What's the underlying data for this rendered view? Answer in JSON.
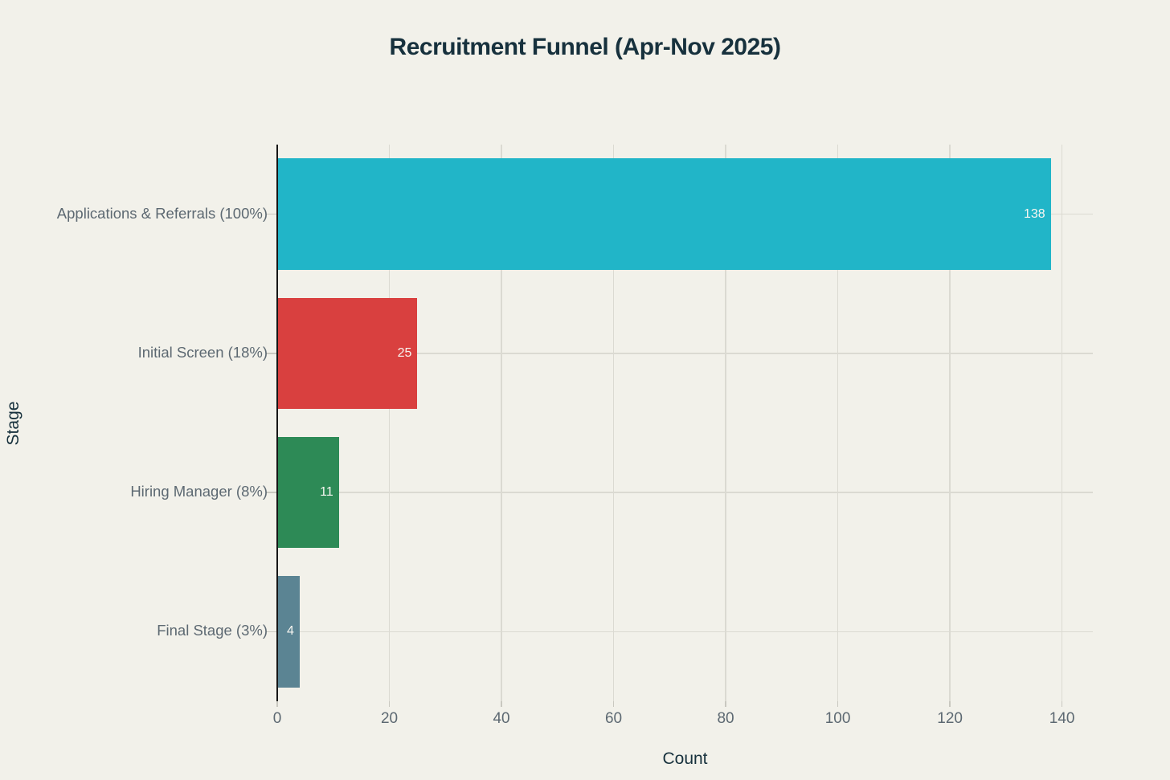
{
  "title": "Recruitment Funnel (Apr-Nov 2025)",
  "chart_data": {
    "type": "bar",
    "orientation": "horizontal",
    "title": "Recruitment Funnel (Apr-Nov 2025)",
    "xlabel": "Count",
    "ylabel": "Stage",
    "categories": [
      "Applications & Referrals (100%)",
      "Initial Screen (18%)",
      "Hiring Manager (8%)",
      "Final Stage (3%)"
    ],
    "values": [
      138,
      25,
      11,
      4
    ],
    "value_labels": [
      "138",
      "25",
      "11",
      "4"
    ],
    "bar_colors": [
      "#21b5c8",
      "#d9403f",
      "#2d8a56",
      "#5b8493"
    ],
    "xticks": [
      0,
      20,
      40,
      60,
      80,
      100,
      120,
      140
    ],
    "xlim": [
      0,
      145.5
    ],
    "grid": true,
    "legend": false
  },
  "colors": {
    "background": "#f2f1ea",
    "title_text": "#17313d",
    "axis_title_text": "#17313d",
    "tick_label_text": "#5d6972",
    "gridline": "#dbdad2",
    "axis_line": "#161616",
    "bar_value_text": "#f7f6f1"
  }
}
